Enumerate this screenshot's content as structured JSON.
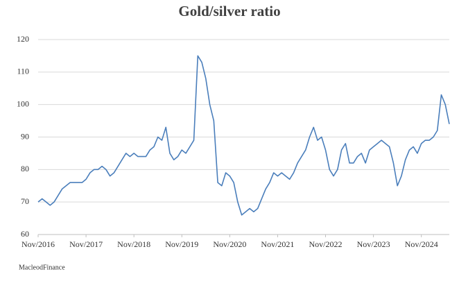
{
  "chart_data": {
    "type": "line",
    "title": "Gold/silver ratio",
    "footer": "MacleodFinance",
    "x": [
      "2016-11",
      "2016-12",
      "2017-01",
      "2017-02",
      "2017-03",
      "2017-04",
      "2017-05",
      "2017-06",
      "2017-07",
      "2017-08",
      "2017-09",
      "2017-10",
      "2017-11",
      "2017-12",
      "2018-01",
      "2018-02",
      "2018-03",
      "2018-04",
      "2018-05",
      "2018-06",
      "2018-07",
      "2018-08",
      "2018-09",
      "2018-10",
      "2018-11",
      "2018-12",
      "2019-01",
      "2019-02",
      "2019-03",
      "2019-04",
      "2019-05",
      "2019-06",
      "2019-07",
      "2019-08",
      "2019-09",
      "2019-10",
      "2019-11",
      "2019-12",
      "2020-01",
      "2020-02",
      "2020-03",
      "2020-04",
      "2020-05",
      "2020-06",
      "2020-07",
      "2020-08",
      "2020-09",
      "2020-10",
      "2020-11",
      "2020-12",
      "2021-01",
      "2021-02",
      "2021-03",
      "2021-04",
      "2021-05",
      "2021-06",
      "2021-07",
      "2021-08",
      "2021-09",
      "2021-10",
      "2021-11",
      "2021-12",
      "2022-01",
      "2022-02",
      "2022-03",
      "2022-04",
      "2022-05",
      "2022-06",
      "2022-07",
      "2022-08",
      "2022-09",
      "2022-10",
      "2022-11",
      "2022-12",
      "2023-01",
      "2023-02",
      "2023-03",
      "2023-04",
      "2023-05",
      "2023-06",
      "2023-07",
      "2023-08",
      "2023-09",
      "2023-10",
      "2023-11",
      "2023-12",
      "2024-01",
      "2024-02",
      "2024-03",
      "2024-04",
      "2024-05",
      "2024-06",
      "2024-07",
      "2024-08",
      "2024-09",
      "2024-10",
      "2024-11",
      "2024-12",
      "2025-01",
      "2025-02",
      "2025-03",
      "2025-04",
      "2025-05",
      "2025-06"
    ],
    "series": [
      {
        "name": "Gold/silver ratio",
        "color": "#4a7ebb",
        "values": [
          70,
          71,
          70,
          69,
          70,
          72,
          74,
          75,
          76,
          76,
          76,
          76,
          77,
          79,
          80,
          80,
          81,
          80,
          78,
          79,
          81,
          83,
          85,
          84,
          85,
          84,
          84,
          84,
          86,
          87,
          90,
          89,
          93,
          85,
          83,
          84,
          86,
          85,
          87,
          89,
          115,
          113,
          108,
          100,
          95,
          76,
          75,
          79,
          78,
          76,
          70,
          66,
          67,
          68,
          67,
          68,
          71,
          74,
          76,
          79,
          78,
          79,
          78,
          77,
          79,
          82,
          84,
          86,
          90,
          93,
          89,
          90,
          86,
          80,
          78,
          80,
          86,
          88,
          82,
          82,
          84,
          85,
          82,
          86,
          87,
          88,
          89,
          88,
          87,
          82,
          75,
          78,
          83,
          86,
          87,
          85,
          88,
          89,
          89,
          90,
          92,
          103,
          100,
          94
        ]
      }
    ],
    "xlim": [
      "2016-11",
      "2025-06"
    ],
    "xticks": [
      {
        "value": "2016-11",
        "label": "Nov/2016"
      },
      {
        "value": "2017-11",
        "label": "Nov/2017"
      },
      {
        "value": "2018-11",
        "label": "Nov/2018"
      },
      {
        "value": "2019-11",
        "label": "Nov/2019"
      },
      {
        "value": "2020-11",
        "label": "Nov/2020"
      },
      {
        "value": "2021-11",
        "label": "Nov/2021"
      },
      {
        "value": "2022-11",
        "label": "Nov/2022"
      },
      {
        "value": "2023-11",
        "label": "Nov/2023"
      },
      {
        "value": "2024-11",
        "label": "Nov/2024"
      }
    ],
    "ylim": [
      60,
      120
    ],
    "yticks": [
      60,
      70,
      80,
      90,
      100,
      110,
      120
    ],
    "grid": true
  }
}
